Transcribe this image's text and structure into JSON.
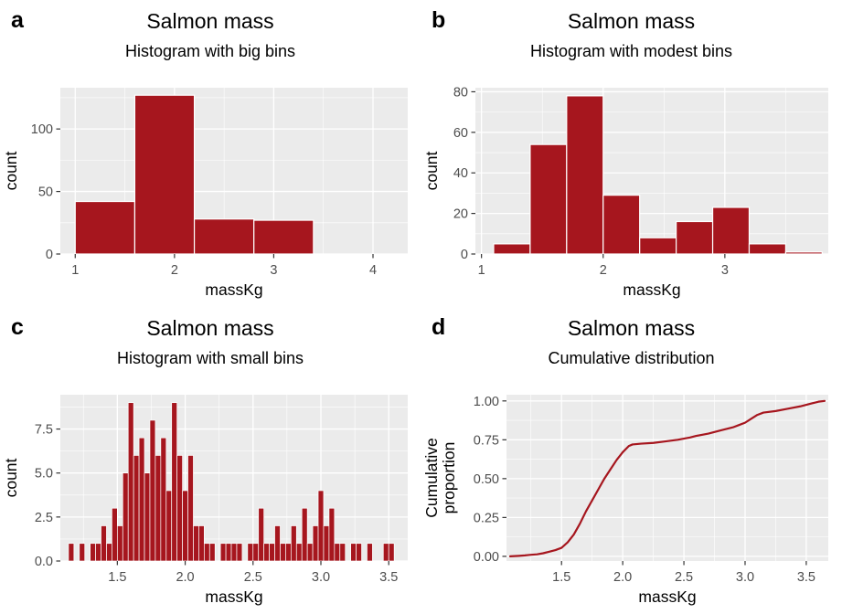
{
  "colors": {
    "accent": "#A6161E",
    "panel_bg": "#EBEBEB",
    "grid": "#FFFFFF",
    "tick_mark": "#333333",
    "tick_label": "#4D4D4D",
    "text": "#000000",
    "bar_stroke": "#FFFFFF"
  },
  "chart_data": [
    {
      "panel_label": "a",
      "type": "histogram",
      "title": "Salmon mass",
      "subtitle": "Histogram with big bins",
      "xlabel": "massKg",
      "ylabel": [
        "count"
      ],
      "xlim": [
        0.85,
        4.35
      ],
      "ylim": [
        0,
        133
      ],
      "xticks": [
        1,
        2,
        3,
        4
      ],
      "xtick_labels": [
        "1",
        "2",
        "3",
        "4"
      ],
      "yticks": [
        0,
        50,
        100
      ],
      "ytick_labels": [
        "0",
        "50",
        "100"
      ],
      "breaks": [
        1.0,
        1.6,
        2.2,
        2.8,
        3.4
      ],
      "counts": [
        42,
        127,
        28,
        27
      ],
      "bar_stroke_width": 1.2,
      "margins": {
        "l": 66,
        "r": 14,
        "t": 8,
        "b": 56
      }
    },
    {
      "panel_label": "b",
      "type": "histogram",
      "title": "Salmon mass",
      "subtitle": "Histogram with modest bins",
      "xlabel": "massKg",
      "ylabel": [
        "count"
      ],
      "xlim": [
        0.95,
        3.85
      ],
      "ylim": [
        0,
        82
      ],
      "xticks": [
        1,
        2,
        3
      ],
      "xtick_labels": [
        "1",
        "2",
        "3"
      ],
      "yticks": [
        0,
        20,
        40,
        60,
        80
      ],
      "ytick_labels": [
        "0",
        "20",
        "40",
        "60",
        "80"
      ],
      "breaks": [
        1.1,
        1.4,
        1.7,
        2.0,
        2.3,
        2.6,
        2.9,
        3.2,
        3.5,
        3.8
      ],
      "counts": [
        5,
        54,
        78,
        29,
        8,
        16,
        23,
        5,
        1
      ],
      "bar_stroke_width": 1.2,
      "margins": {
        "l": 60,
        "r": 14,
        "t": 8,
        "b": 56
      }
    },
    {
      "panel_label": "c",
      "type": "histogram",
      "title": "Salmon mass",
      "subtitle": "Histogram with small bins",
      "xlabel": "massKg",
      "ylabel": [
        "count"
      ],
      "xlim": [
        1.08,
        3.64
      ],
      "ylim": [
        0,
        9.45
      ],
      "xticks": [
        1.5,
        2.0,
        2.5,
        3.0,
        3.5
      ],
      "xtick_labels": [
        "1.5",
        "2.0",
        "2.5",
        "3.0",
        "3.5"
      ],
      "yticks": [
        0,
        2.5,
        5.0,
        7.5
      ],
      "ytick_labels": [
        "0.0",
        "2.5",
        "5.0",
        "7.5"
      ],
      "bin_start": 1.14,
      "bin_width": 0.04,
      "counts": [
        1,
        0,
        1,
        0,
        1,
        1,
        2,
        1,
        3,
        2,
        5,
        9,
        6,
        7,
        5,
        8,
        6,
        7,
        4,
        9,
        6,
        4,
        6,
        2,
        2,
        1,
        1,
        0,
        1,
        1,
        1,
        1,
        0,
        1,
        1,
        3,
        1,
        1,
        2,
        1,
        1,
        2,
        1,
        3,
        1,
        2,
        4,
        2,
        3,
        1,
        1,
        0,
        1,
        1,
        0,
        1,
        0,
        0,
        1,
        1
      ],
      "bar_stroke_width": 0.7,
      "margins": {
        "l": 66,
        "r": 14,
        "t": 8,
        "b": 56
      }
    },
    {
      "panel_label": "d",
      "type": "line",
      "title": "Salmon mass",
      "subtitle": "Cumulative distribution",
      "xlabel": "massKg",
      "ylabel": [
        "Cumulative",
        "proportion"
      ],
      "xlim": [
        1.05,
        3.68
      ],
      "ylim": [
        -0.03,
        1.04
      ],
      "xticks": [
        1.5,
        2.0,
        2.5,
        3.0,
        3.5
      ],
      "xtick_labels": [
        "1.5",
        "2.0",
        "2.5",
        "3.0",
        "3.5"
      ],
      "yticks": [
        0,
        0.25,
        0.5,
        0.75,
        1.0
      ],
      "ytick_labels": [
        "0.00",
        "0.25",
        "0.50",
        "0.75",
        "1.00"
      ],
      "points": [
        [
          1.08,
          0.0
        ],
        [
          1.15,
          0.003
        ],
        [
          1.2,
          0.006
        ],
        [
          1.25,
          0.01
        ],
        [
          1.3,
          0.013
        ],
        [
          1.35,
          0.02
        ],
        [
          1.4,
          0.03
        ],
        [
          1.45,
          0.04
        ],
        [
          1.5,
          0.055
        ],
        [
          1.55,
          0.09
        ],
        [
          1.6,
          0.14
        ],
        [
          1.65,
          0.21
        ],
        [
          1.7,
          0.29
        ],
        [
          1.75,
          0.36
        ],
        [
          1.8,
          0.43
        ],
        [
          1.85,
          0.5
        ],
        [
          1.9,
          0.56
        ],
        [
          1.95,
          0.62
        ],
        [
          2.0,
          0.67
        ],
        [
          2.05,
          0.71
        ],
        [
          2.08,
          0.72
        ],
        [
          2.15,
          0.725
        ],
        [
          2.25,
          0.73
        ],
        [
          2.35,
          0.74
        ],
        [
          2.45,
          0.75
        ],
        [
          2.55,
          0.765
        ],
        [
          2.6,
          0.775
        ],
        [
          2.7,
          0.79
        ],
        [
          2.8,
          0.81
        ],
        [
          2.9,
          0.83
        ],
        [
          2.95,
          0.845
        ],
        [
          3.0,
          0.86
        ],
        [
          3.05,
          0.885
        ],
        [
          3.1,
          0.91
        ],
        [
          3.15,
          0.925
        ],
        [
          3.25,
          0.935
        ],
        [
          3.35,
          0.95
        ],
        [
          3.45,
          0.965
        ],
        [
          3.5,
          0.975
        ],
        [
          3.55,
          0.985
        ],
        [
          3.6,
          0.995
        ],
        [
          3.65,
          1.0
        ]
      ],
      "line_width": 2.2,
      "margins": {
        "l": 94,
        "r": 14,
        "t": 8,
        "b": 56
      }
    }
  ]
}
